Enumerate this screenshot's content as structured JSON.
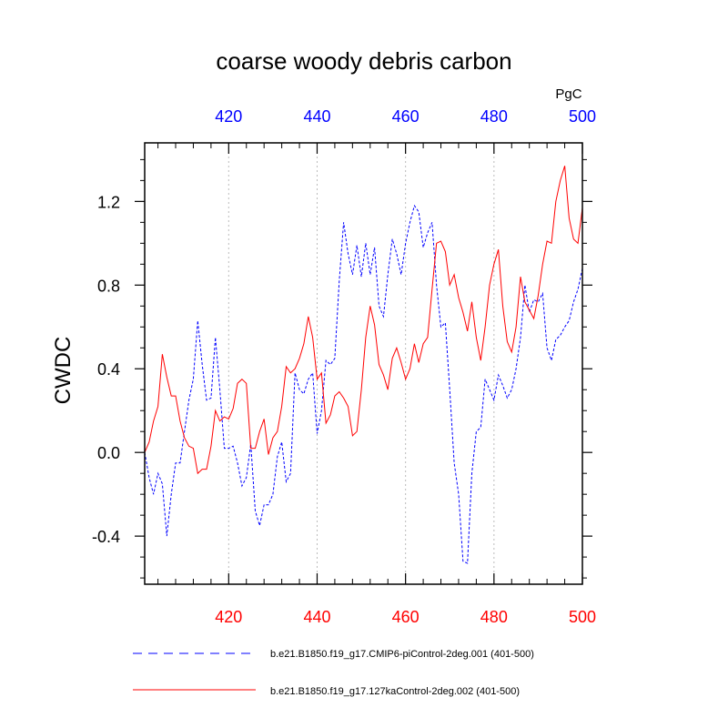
{
  "chart_data": {
    "type": "line",
    "title": "coarse woody debris carbon",
    "units": "PgC",
    "ylabel": "CWDC",
    "xlim": [
      401,
      500
    ],
    "ylim": [
      -0.63,
      1.48
    ],
    "yticks": [
      -0.4,
      0.0,
      0.4,
      0.8,
      1.2
    ],
    "ytick_labels": [
      "-0.4",
      "0.0",
      "0.4",
      "0.8",
      "1.2"
    ],
    "xticks": [
      420,
      440,
      460,
      480,
      500
    ],
    "xtick_labels": [
      "420",
      "440",
      "460",
      "480",
      "500"
    ],
    "top_axis_color": "#0000ff",
    "bottom_axis_color": "#ff0000",
    "grid": "vertical dotted at major x ticks",
    "legend_position": "bottom",
    "series": [
      {
        "name": "b.e21.B1850.f19_g17.CMIP6-piControl-2deg.001 (401-500)",
        "color": "#0000ff",
        "style": "dashed",
        "x": [
          401,
          402,
          403,
          404,
          405,
          406,
          407,
          408,
          409,
          410,
          411,
          412,
          413,
          414,
          415,
          416,
          417,
          418,
          419,
          420,
          421,
          422,
          423,
          424,
          425,
          426,
          427,
          428,
          429,
          430,
          431,
          432,
          433,
          434,
          435,
          436,
          437,
          438,
          439,
          440,
          441,
          442,
          443,
          444,
          445,
          446,
          447,
          448,
          449,
          450,
          451,
          452,
          453,
          454,
          455,
          456,
          457,
          458,
          459,
          460,
          461,
          462,
          463,
          464,
          465,
          466,
          467,
          468,
          469,
          470,
          471,
          472,
          473,
          474,
          475,
          476,
          477,
          478,
          479,
          480,
          481,
          482,
          483,
          484,
          485,
          486,
          487,
          488,
          489,
          490,
          491,
          492,
          493,
          494,
          495,
          496,
          497,
          498,
          499,
          500
        ],
        "values": [
          0.0,
          -0.12,
          -0.2,
          -0.1,
          -0.15,
          -0.4,
          -0.2,
          -0.05,
          -0.05,
          0.1,
          0.25,
          0.35,
          0.63,
          0.42,
          0.25,
          0.26,
          0.55,
          0.3,
          0.02,
          0.02,
          0.03,
          -0.05,
          -0.16,
          -0.12,
          0.04,
          -0.28,
          -0.35,
          -0.25,
          -0.25,
          -0.2,
          -0.02,
          0.05,
          -0.14,
          -0.1,
          0.38,
          0.3,
          0.28,
          0.35,
          0.38,
          0.09,
          0.2,
          0.44,
          0.42,
          0.45,
          0.82,
          1.1,
          0.95,
          0.85,
          0.99,
          0.84,
          1.0,
          0.85,
          0.98,
          0.7,
          0.65,
          0.85,
          1.02,
          0.95,
          0.85,
          1.0,
          1.1,
          1.18,
          1.15,
          0.98,
          1.05,
          1.1,
          0.8,
          0.6,
          0.62,
          0.3,
          -0.05,
          -0.2,
          -0.52,
          -0.53,
          -0.1,
          0.1,
          0.12,
          0.35,
          0.3,
          0.25,
          0.37,
          0.32,
          0.26,
          0.3,
          0.4,
          0.55,
          0.8,
          0.67,
          0.73,
          0.72,
          0.76,
          0.5,
          0.44,
          0.54,
          0.56,
          0.6,
          0.63,
          0.72,
          0.78,
          0.88
        ]
      },
      {
        "name": "b.e21.B1850.f19_g17.127kaControl-2deg.002 (401-500)",
        "color": "#ff0000",
        "style": "solid",
        "x": [
          401,
          402,
          403,
          404,
          405,
          406,
          407,
          408,
          409,
          410,
          411,
          412,
          413,
          414,
          415,
          416,
          417,
          418,
          419,
          420,
          421,
          422,
          423,
          424,
          425,
          426,
          427,
          428,
          429,
          430,
          431,
          432,
          433,
          434,
          435,
          436,
          437,
          438,
          439,
          440,
          441,
          442,
          443,
          444,
          445,
          446,
          447,
          448,
          449,
          450,
          451,
          452,
          453,
          454,
          455,
          456,
          457,
          458,
          459,
          460,
          461,
          462,
          463,
          464,
          465,
          466,
          467,
          468,
          469,
          470,
          471,
          472,
          473,
          474,
          475,
          476,
          477,
          478,
          479,
          480,
          481,
          482,
          483,
          484,
          485,
          486,
          487,
          488,
          489,
          490,
          491,
          492,
          493,
          494,
          495,
          496,
          497,
          498,
          499,
          500
        ],
        "values": [
          0.0,
          0.05,
          0.15,
          0.22,
          0.47,
          0.36,
          0.27,
          0.27,
          0.15,
          0.07,
          0.03,
          0.02,
          -0.1,
          -0.08,
          -0.08,
          0.03,
          0.2,
          0.15,
          0.17,
          0.16,
          0.21,
          0.33,
          0.35,
          0.33,
          0.02,
          0.02,
          0.1,
          0.16,
          -0.01,
          0.07,
          0.1,
          0.22,
          0.41,
          0.38,
          0.4,
          0.45,
          0.52,
          0.65,
          0.55,
          0.35,
          0.38,
          0.14,
          0.18,
          0.27,
          0.29,
          0.26,
          0.22,
          0.08,
          0.1,
          0.3,
          0.55,
          0.7,
          0.61,
          0.42,
          0.37,
          0.3,
          0.45,
          0.5,
          0.43,
          0.35,
          0.4,
          0.52,
          0.43,
          0.52,
          0.55,
          0.78,
          1.0,
          1.01,
          0.96,
          0.8,
          0.85,
          0.74,
          0.67,
          0.58,
          0.72,
          0.55,
          0.44,
          0.6,
          0.8,
          0.9,
          0.97,
          0.7,
          0.53,
          0.48,
          0.6,
          0.84,
          0.72,
          0.68,
          0.64,
          0.75,
          0.9,
          1.01,
          1.0,
          1.2,
          1.3,
          1.37,
          1.12,
          1.02,
          1.0,
          1.17
        ]
      }
    ]
  }
}
